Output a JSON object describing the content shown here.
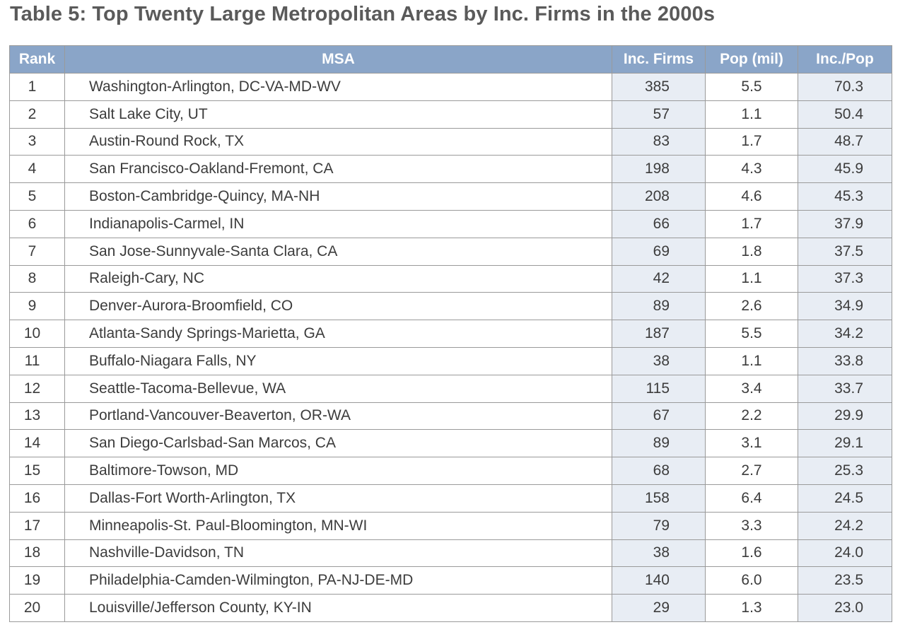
{
  "title": "Table 5: Top Twenty Large Metropolitan Areas by Inc. Firms in the 2000s",
  "columns": [
    "Rank",
    "MSA",
    "Inc. Firms",
    "Pop (mil)",
    "Inc./Pop"
  ],
  "rows": [
    {
      "rank": "1",
      "msa": "Washington-Arlington, DC-VA-MD-WV",
      "firms": "385",
      "pop": "5.5",
      "ratio": "70.3"
    },
    {
      "rank": "2",
      "msa": "Salt Lake City, UT",
      "firms": "57",
      "pop": "1.1",
      "ratio": "50.4"
    },
    {
      "rank": "3",
      "msa": "Austin-Round Rock, TX",
      "firms": "83",
      "pop": "1.7",
      "ratio": "48.7"
    },
    {
      "rank": "4",
      "msa": "San Francisco-Oakland-Fremont, CA",
      "firms": "198",
      "pop": "4.3",
      "ratio": "45.9"
    },
    {
      "rank": "5",
      "msa": "Boston-Cambridge-Quincy, MA-NH",
      "firms": "208",
      "pop": "4.6",
      "ratio": "45.3"
    },
    {
      "rank": "6",
      "msa": "Indianapolis-Carmel, IN",
      "firms": "66",
      "pop": "1.7",
      "ratio": "37.9"
    },
    {
      "rank": "7",
      "msa": "San Jose-Sunnyvale-Santa Clara, CA",
      "firms": "69",
      "pop": "1.8",
      "ratio": "37.5"
    },
    {
      "rank": "8",
      "msa": "Raleigh-Cary, NC",
      "firms": "42",
      "pop": "1.1",
      "ratio": "37.3"
    },
    {
      "rank": "9",
      "msa": "Denver-Aurora-Broomfield, CO",
      "firms": "89",
      "pop": "2.6",
      "ratio": "34.9"
    },
    {
      "rank": "10",
      "msa": "Atlanta-Sandy Springs-Marietta, GA",
      "firms": "187",
      "pop": "5.5",
      "ratio": "34.2"
    },
    {
      "rank": "11",
      "msa": "Buffalo-Niagara Falls, NY",
      "firms": "38",
      "pop": "1.1",
      "ratio": "33.8"
    },
    {
      "rank": "12",
      "msa": "Seattle-Tacoma-Bellevue, WA",
      "firms": "115",
      "pop": "3.4",
      "ratio": "33.7"
    },
    {
      "rank": "13",
      "msa": "Portland-Vancouver-Beaverton, OR-WA",
      "firms": "67",
      "pop": "2.2",
      "ratio": "29.9"
    },
    {
      "rank": "14",
      "msa": "San Diego-Carlsbad-San Marcos, CA",
      "firms": "89",
      "pop": "3.1",
      "ratio": "29.1"
    },
    {
      "rank": "15",
      "msa": "Baltimore-Towson, MD",
      "firms": "68",
      "pop": "2.7",
      "ratio": "25.3"
    },
    {
      "rank": "16",
      "msa": "Dallas-Fort Worth-Arlington, TX",
      "firms": "158",
      "pop": "6.4",
      "ratio": "24.5"
    },
    {
      "rank": "17",
      "msa": "Minneapolis-St. Paul-Bloomington, MN-WI",
      "firms": "79",
      "pop": "3.3",
      "ratio": "24.2"
    },
    {
      "rank": "18",
      "msa": "Nashville-Davidson, TN",
      "firms": "38",
      "pop": "1.6",
      "ratio": "24.0"
    },
    {
      "rank": "19",
      "msa": "Philadelphia-Camden-Wilmington, PA-NJ-DE-MD",
      "firms": "140",
      "pop": "6.0",
      "ratio": "23.5"
    },
    {
      "rank": "20",
      "msa": "Louisville/Jefferson County, KY-IN",
      "firms": "29",
      "pop": "1.3",
      "ratio": "23.0"
    }
  ],
  "colors": {
    "header_bg": "#8aa5c8",
    "header_text": "#ffffff",
    "shaded_column_bg": "#e8edf4",
    "title_text": "#5a5a5a",
    "border": "#9a9a9a"
  }
}
